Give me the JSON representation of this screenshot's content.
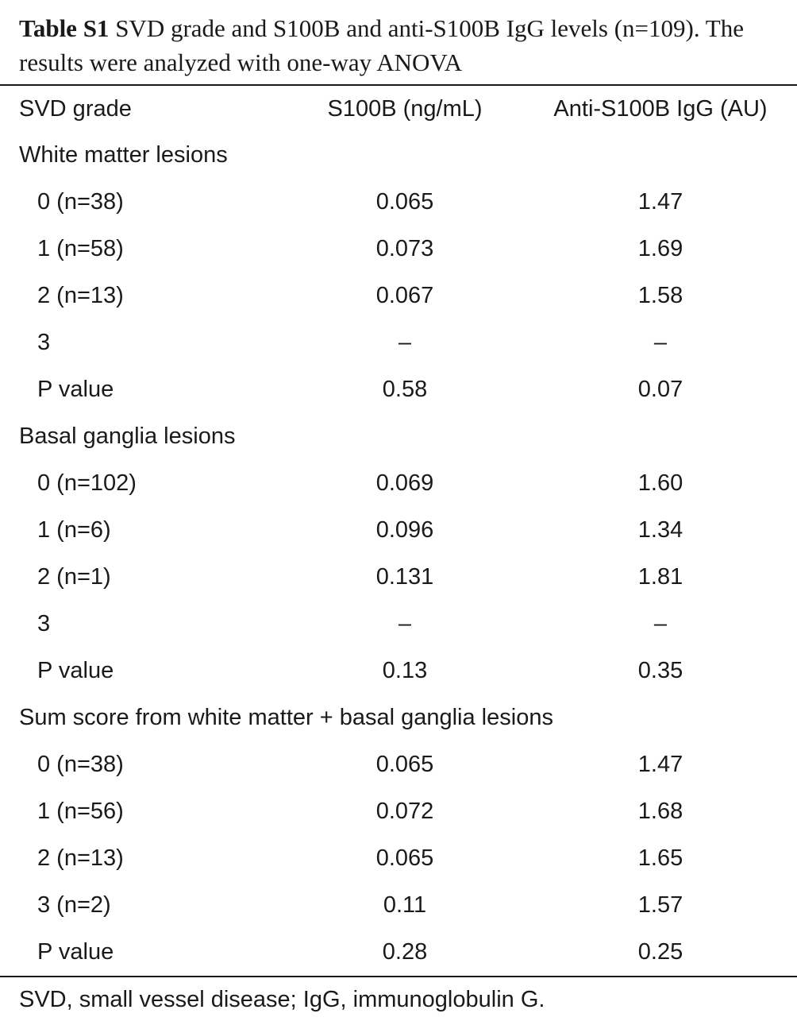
{
  "caption": {
    "label": "Table S1",
    "text": "SVD grade and S100B and anti-S100B IgG levels (n=109). The results were analyzed with one-way ANOVA"
  },
  "table": {
    "headers": [
      "SVD grade",
      "S100B (ng/mL)",
      "Anti-S100B IgG (AU)"
    ],
    "sections": [
      {
        "title": "White matter lesions",
        "rows": [
          {
            "grade": "0 (n=38)",
            "s100b": "0.065",
            "igg": "1.47"
          },
          {
            "grade": "1 (n=58)",
            "s100b": "0.073",
            "igg": "1.69"
          },
          {
            "grade": "2 (n=13)",
            "s100b": "0.067",
            "igg": "1.58"
          },
          {
            "grade": "3",
            "s100b": "–",
            "igg": "–"
          },
          {
            "grade": "P value",
            "s100b": "0.58",
            "igg": "0.07"
          }
        ]
      },
      {
        "title": "Basal ganglia lesions",
        "rows": [
          {
            "grade": "0 (n=102)",
            "s100b": "0.069",
            "igg": "1.60"
          },
          {
            "grade": "1 (n=6)",
            "s100b": "0.096",
            "igg": "1.34"
          },
          {
            "grade": "2 (n=1)",
            "s100b": "0.131",
            "igg": "1.81"
          },
          {
            "grade": "3",
            "s100b": "–",
            "igg": "–"
          },
          {
            "grade": "P value",
            "s100b": "0.13",
            "igg": "0.35"
          }
        ]
      },
      {
        "title": "Sum score from white matter + basal ganglia lesions",
        "rows": [
          {
            "grade": "0 (n=38)",
            "s100b": "0.065",
            "igg": "1.47"
          },
          {
            "grade": "1 (n=56)",
            "s100b": "0.072",
            "igg": "1.68"
          },
          {
            "grade": "2 (n=13)",
            "s100b": "0.065",
            "igg": "1.65"
          },
          {
            "grade": "3 (n=2)",
            "s100b": "0.11",
            "igg": "1.57"
          },
          {
            "grade": "P value",
            "s100b": "0.28",
            "igg": "0.25"
          }
        ]
      }
    ]
  },
  "footnote": "SVD, small vessel disease; IgG, immunoglobulin G."
}
